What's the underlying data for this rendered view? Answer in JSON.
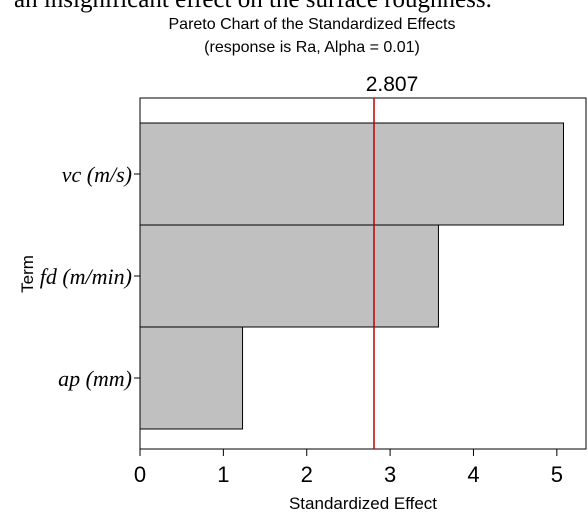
{
  "caption_fragment": "an insignificant effect on the surface roughness.",
  "chart_data": {
    "type": "bar",
    "orientation": "horizontal",
    "title": "Pareto Chart of the Standardized Effects",
    "subtitle": "(response is Ra, Alpha = 0.01)",
    "xlabel": "Standardized Effect",
    "ylabel": "Term",
    "categories": [
      "vc (m/s)",
      "fd (m/min)",
      "ap (mm)"
    ],
    "values": [
      5.08,
      3.58,
      1.23
    ],
    "xlim": [
      0,
      5.35
    ],
    "xticks": [
      0,
      1,
      2,
      3,
      4,
      5
    ],
    "reference_line": {
      "value": 2.807,
      "label": "2.807",
      "color": "#c00000"
    },
    "bar_color": "#c0c0c0",
    "grid": false,
    "legend": "none"
  }
}
